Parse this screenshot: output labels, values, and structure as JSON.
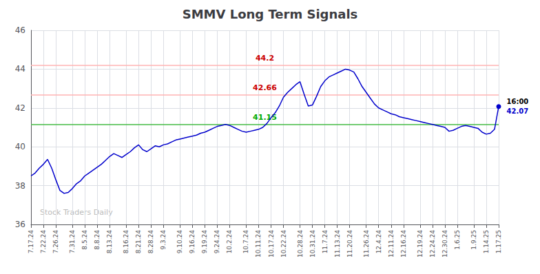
{
  "chart_data": {
    "type": "line",
    "title": "SMMV Long Term Signals",
    "categories": [
      "7.17.24",
      null,
      null,
      "7.22.24",
      null,
      null,
      "7.26.24",
      null,
      null,
      null,
      "7.31.24",
      null,
      null,
      "8.5.24",
      null,
      null,
      "8.8.24",
      null,
      null,
      "8.13.24",
      null,
      null,
      null,
      "8.16.24",
      null,
      null,
      "8.21.24",
      null,
      null,
      "8.28.24",
      null,
      null,
      "9.3.24",
      null,
      null,
      null,
      "9.10.24",
      null,
      null,
      "9.16.24",
      null,
      null,
      "9.19.24",
      null,
      null,
      "9.24.24",
      null,
      null,
      "10.2.24",
      null,
      null,
      null,
      "10.7.24",
      null,
      null,
      "10.11.24",
      null,
      null,
      "10.17.24",
      null,
      null,
      "10.22.24",
      null,
      null,
      null,
      "10.28.24",
      null,
      null,
      "10.31.24",
      null,
      null,
      "11.7.24",
      null,
      null,
      "11.13.24",
      null,
      null,
      "11.20.24",
      null,
      null,
      null,
      "11.26.24",
      null,
      null,
      "12.4.24",
      null,
      null,
      "12.11.24",
      null,
      null,
      "12.16.24",
      null,
      null,
      null,
      "12.19.24",
      null,
      null,
      "12.24.24",
      null,
      null,
      "12.30.24",
      null,
      null,
      "1.6.25",
      null,
      null,
      null,
      "1.9.25",
      null,
      null,
      "1.14.25",
      null,
      null,
      "1.17.25"
    ],
    "values": [
      38.5,
      38.65,
      38.9,
      39.1,
      39.35,
      38.9,
      38.3,
      37.75,
      37.6,
      37.65,
      37.85,
      38.1,
      38.25,
      38.5,
      38.65,
      38.8,
      38.95,
      39.1,
      39.3,
      39.5,
      39.65,
      39.55,
      39.45,
      39.6,
      39.75,
      39.95,
      40.1,
      39.85,
      39.75,
      39.9,
      40.05,
      40.0,
      40.1,
      40.15,
      40.25,
      40.35,
      40.4,
      40.45,
      40.5,
      40.55,
      40.6,
      40.7,
      40.75,
      40.85,
      40.95,
      41.05,
      41.1,
      41.15,
      41.1,
      41.0,
      40.9,
      40.8,
      40.75,
      40.8,
      40.85,
      40.9,
      41.0,
      41.2,
      41.5,
      41.75,
      42.1,
      42.55,
      42.8,
      43.0,
      43.2,
      43.35,
      42.7,
      42.1,
      42.15,
      42.6,
      43.1,
      43.4,
      43.6,
      43.7,
      43.8,
      43.9,
      44.0,
      43.95,
      43.85,
      43.5,
      43.1,
      42.8,
      42.5,
      42.2,
      42.0,
      41.9,
      41.8,
      41.7,
      41.65,
      41.55,
      41.5,
      41.45,
      41.4,
      41.35,
      41.3,
      41.25,
      41.2,
      41.15,
      41.1,
      41.05,
      41.0,
      40.8,
      40.85,
      40.95,
      41.05,
      41.1,
      41.05,
      41.0,
      40.95,
      40.75,
      40.65,
      40.7,
      40.9,
      42.07
    ],
    "color": "#0000cc",
    "ylim": [
      36,
      46
    ],
    "yticks": [
      36,
      38,
      40,
      42,
      44,
      46
    ],
    "grid": true,
    "hlines": [
      {
        "value": 44.2,
        "label": "44.2",
        "color": "#ffb3b3",
        "label_color": "#cc0000"
      },
      {
        "value": 42.66,
        "label": "42.66",
        "color": "#ffb3b3",
        "label_color": "#cc0000"
      },
      {
        "value": 41.15,
        "label": "41.15",
        "color": "#44bb44",
        "label_color": "#00aa00"
      }
    ],
    "last_point": {
      "time": "16:00",
      "value": 42.07,
      "color": "#0000cc"
    },
    "watermark": {
      "text": "Stock Traders Daily",
      "color": "#bbbbbb"
    }
  }
}
